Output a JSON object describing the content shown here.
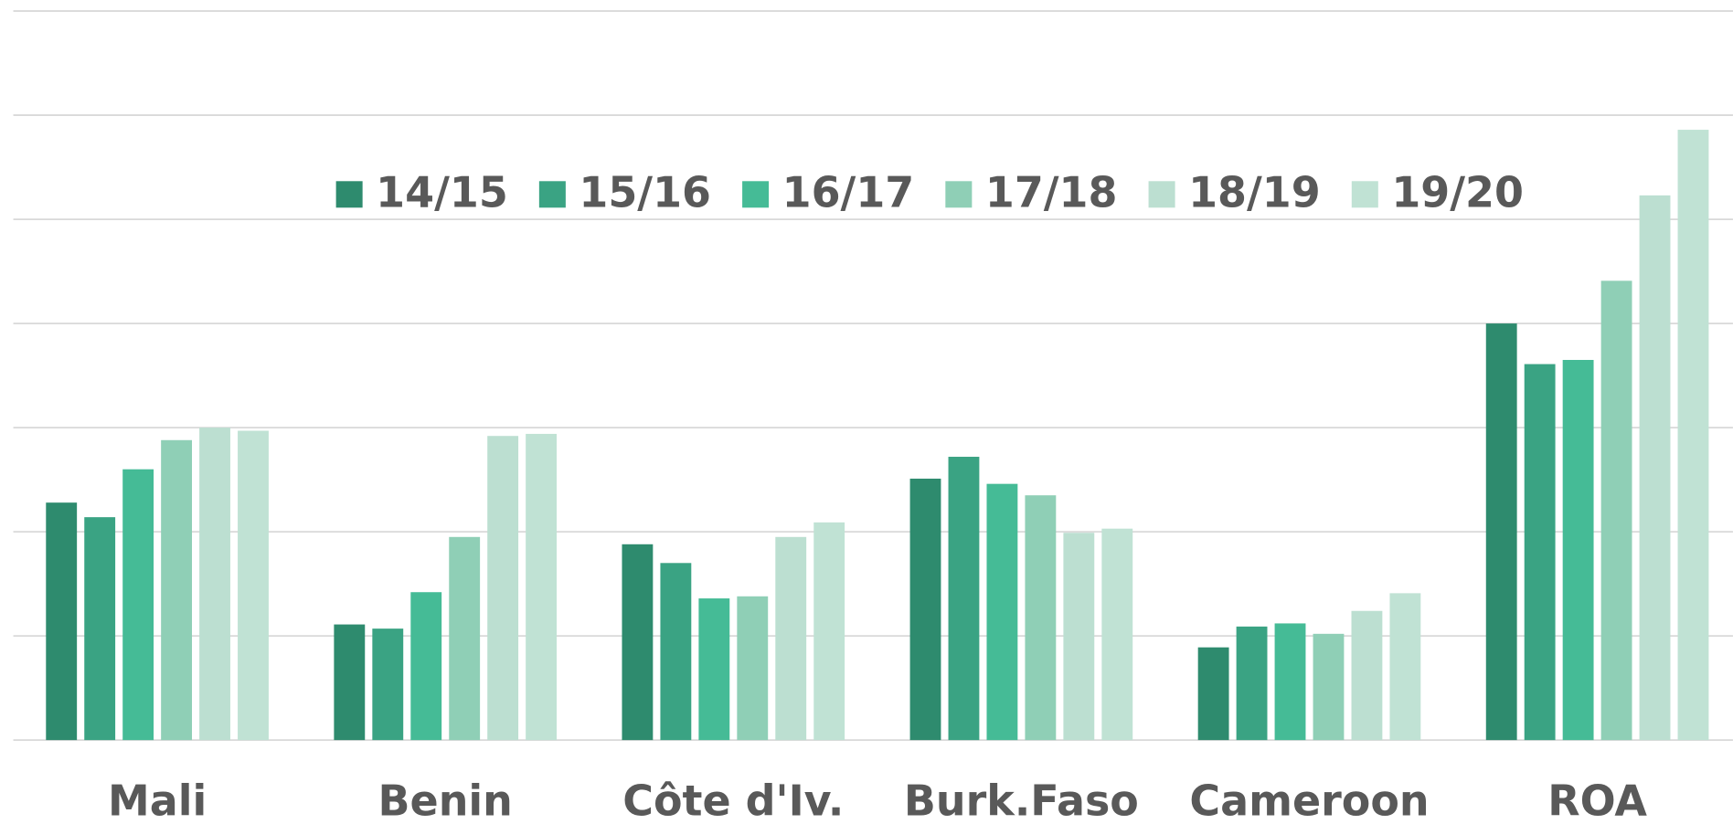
{
  "chart_data": {
    "type": "bar",
    "categories": [
      "Mali",
      "Benin",
      "Côte d'Iv.",
      "Burk.Faso",
      "Cameroon",
      "ROA"
    ],
    "series": [
      {
        "name": "14/15",
        "color": "#2e8b6e",
        "values": [
          2.28,
          1.11,
          1.88,
          2.51,
          0.89,
          4.0
        ]
      },
      {
        "name": "15/16",
        "color": "#3aa383",
        "values": [
          2.14,
          1.07,
          1.7,
          2.72,
          1.09,
          3.61
        ]
      },
      {
        "name": "16/17",
        "color": "#45bb96",
        "values": [
          2.6,
          1.42,
          1.36,
          2.46,
          1.12,
          3.65
        ]
      },
      {
        "name": "17/18",
        "color": "#8fcfb6",
        "values": [
          2.88,
          1.95,
          1.38,
          2.35,
          1.02,
          4.41
        ]
      },
      {
        "name": "18/19",
        "color": "#bcdfd1",
        "values": [
          3.0,
          2.92,
          1.95,
          1.99,
          1.24,
          5.23
        ]
      },
      {
        "name": "19/20",
        "color": "#c0e2d4",
        "values": [
          2.97,
          2.94,
          2.09,
          2.03,
          1.41,
          5.86
        ]
      }
    ],
    "ylim": [
      0,
      7
    ],
    "yticks": [
      0,
      1,
      2,
      3,
      4,
      5,
      6,
      7
    ],
    "grid": true,
    "legend": "top"
  }
}
